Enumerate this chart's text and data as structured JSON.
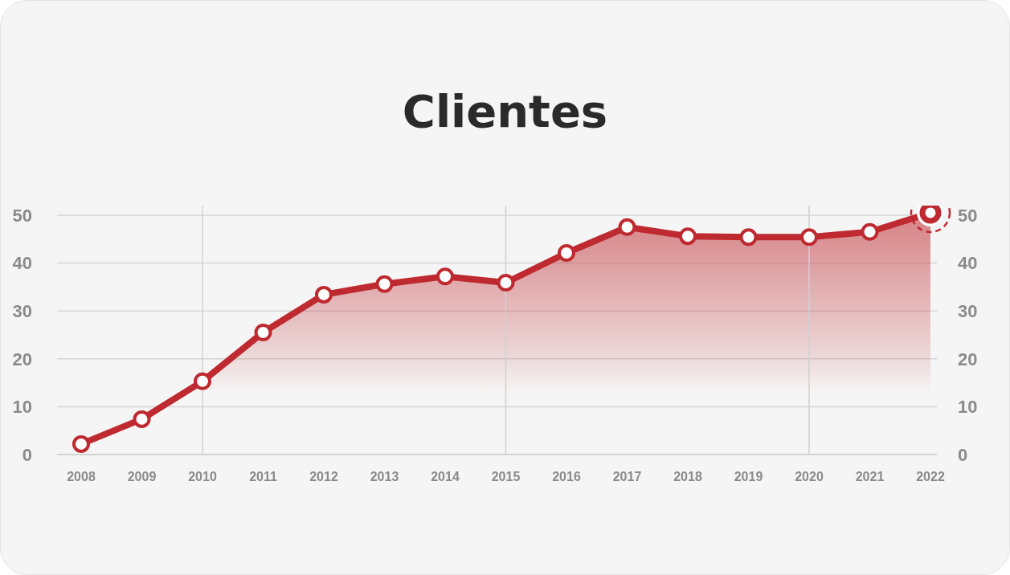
{
  "chart_data": {
    "type": "area",
    "title": "Clientes",
    "categories": [
      "2008",
      "2009",
      "2010",
      "2011",
      "2012",
      "2013",
      "2014",
      "2015",
      "2016",
      "2017",
      "2018",
      "2019",
      "2020",
      "2021",
      "2022"
    ],
    "series": [
      {
        "color": "#be2a30",
        "values": [
          2.2,
          7.4,
          15.3,
          25.5,
          33.4,
          35.6,
          37.2,
          35.9,
          42.1,
          47.5,
          45.6,
          45.4,
          45.4,
          46.5,
          50.5
        ]
      }
    ],
    "ylim": [
      0,
      52
    ],
    "yticks": [
      0,
      10,
      20,
      30,
      40,
      50
    ],
    "y2lim": [
      0,
      52
    ],
    "y2ticks": [
      0,
      10,
      20,
      30,
      40,
      50
    ],
    "grid": "y",
    "marker": "circle",
    "line_style": "solid",
    "ref_lines": [
      {
        "axis": "x",
        "value": "2010",
        "color": "#d0d0d0"
      },
      {
        "axis": "x",
        "value": "2015",
        "color": "#d0d0d0"
      },
      {
        "axis": "x",
        "value": "2020",
        "color": "#d0d0d0"
      }
    ]
  }
}
